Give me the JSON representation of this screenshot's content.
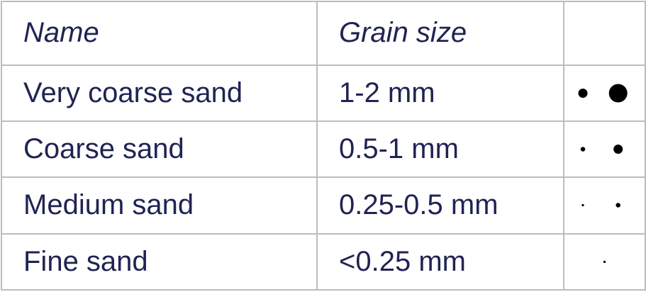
{
  "table": {
    "headers": {
      "name": "Name",
      "grain_size": "Grain size",
      "illustration": ""
    },
    "rows": [
      {
        "name": "Very coarse sand",
        "grain_size": "1-2 mm",
        "dots": [
          {
            "d_mm": 1
          },
          {
            "d_mm": 2
          }
        ]
      },
      {
        "name": "Coarse sand",
        "grain_size": "0.5-1 mm",
        "dots": [
          {
            "d_mm": 0.5
          },
          {
            "d_mm": 1
          }
        ]
      },
      {
        "name": "Medium sand",
        "grain_size": "0.25-0.5 mm",
        "dots": [
          {
            "d_mm": 0.25
          },
          {
            "d_mm": 0.5
          }
        ]
      },
      {
        "name": "Fine sand",
        "grain_size": "<0.25 mm",
        "dots": [
          {
            "d_mm": 0.25
          }
        ]
      }
    ],
    "colors": {
      "text": "#1f2353",
      "border": "#bdbdbd",
      "dot": "#000000"
    }
  }
}
